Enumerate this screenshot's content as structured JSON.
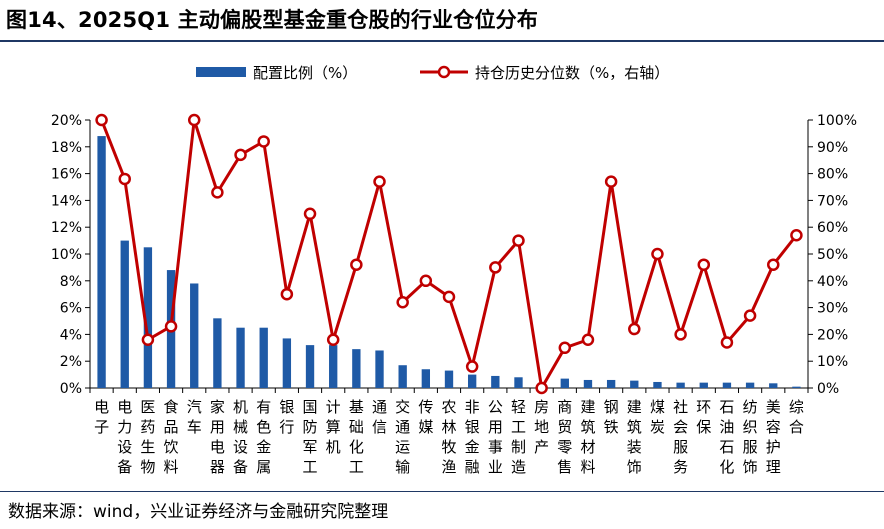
{
  "title": "图14、2025Q1 主动偏股型基金重仓股的行业仓位分布",
  "source": "数据来源：wind，兴业证券经济与金融研究院整理",
  "colors": {
    "bar": "#1f5aa6",
    "line": "#c00000",
    "marker_fill": "#ffffff",
    "rule": "#1f3864"
  },
  "chart_data": {
    "type": "bar+line",
    "categories": [
      "电子",
      "电力设备",
      "医药生物",
      "食品饮料",
      "汽车",
      "家用电器",
      "机械设备",
      "有色金属",
      "银行",
      "国防军工",
      "计算机",
      "基础化工",
      "通信",
      "交通运输",
      "传媒",
      "农林牧渔",
      "非银金融",
      "公用事业",
      "轻工制造",
      "房地产",
      "商贸零售",
      "建筑材料",
      "钢铁",
      "建筑装饰",
      "煤炭",
      "社会服务",
      "环保",
      "石油石化",
      "纺织服饰",
      "美容护理",
      "综合"
    ],
    "series": [
      {
        "name": "配置比例（%）",
        "type": "bar",
        "axis": "left",
        "values": [
          18.8,
          11.0,
          10.5,
          8.8,
          7.8,
          5.2,
          4.5,
          4.5,
          3.7,
          3.2,
          3.2,
          2.9,
          2.8,
          1.7,
          1.4,
          1.3,
          1.0,
          0.9,
          0.8,
          0.1,
          0.7,
          0.6,
          0.6,
          0.55,
          0.45,
          0.4,
          0.4,
          0.4,
          0.4,
          0.35,
          0.1
        ]
      },
      {
        "name": "持仓历史分位数（%，右轴）",
        "type": "line",
        "axis": "right",
        "values": [
          100,
          78,
          18,
          23,
          100,
          73,
          87,
          92,
          35,
          65,
          18,
          46,
          77,
          32,
          40,
          34,
          8,
          45,
          55,
          0,
          15,
          18,
          77,
          22,
          50,
          20,
          46,
          17,
          27,
          46,
          57
        ]
      }
    ],
    "y_left": {
      "min": 0,
      "max": 20,
      "step": 2,
      "ticks": [
        "0%",
        "2%",
        "4%",
        "6%",
        "8%",
        "10%",
        "12%",
        "14%",
        "16%",
        "18%",
        "20%"
      ]
    },
    "y_right": {
      "min": 0,
      "max": 100,
      "step": 10,
      "ticks": [
        "0%",
        "10%",
        "20%",
        "30%",
        "40%",
        "50%",
        "60%",
        "70%",
        "80%",
        "90%",
        "100%"
      ]
    },
    "legend_position": "top",
    "grid": false
  }
}
